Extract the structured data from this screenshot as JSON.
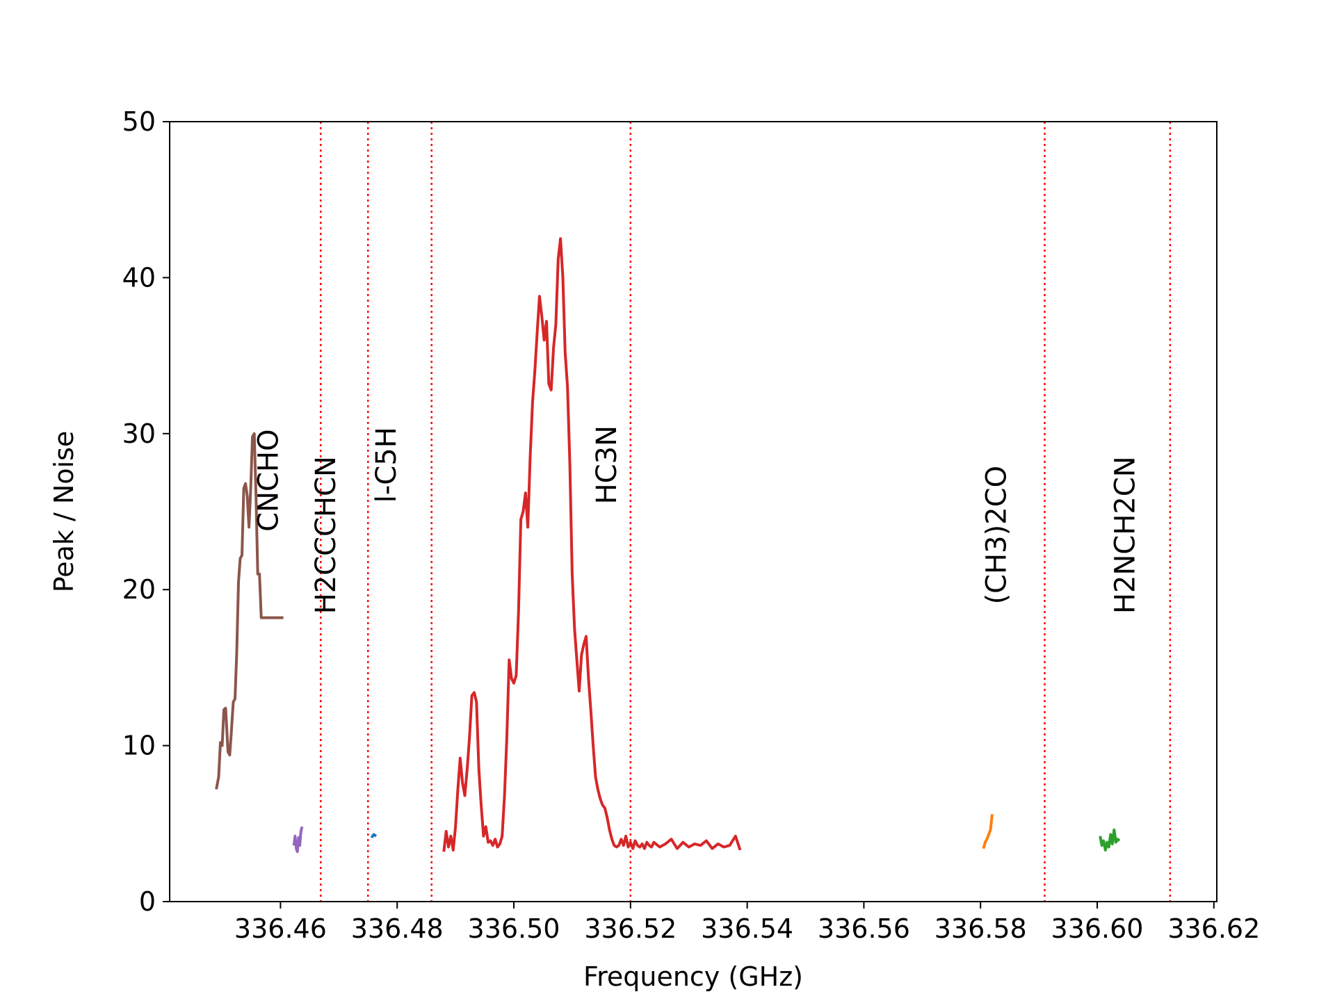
{
  "chart_data": {
    "type": "line",
    "title": "",
    "xlabel": "Frequency (GHz)",
    "ylabel": "Peak / Noise",
    "xlim": [
      336.441,
      336.6205
    ],
    "ylim": [
      0,
      50
    ],
    "xticks": [
      336.46,
      336.48,
      336.5,
      336.52,
      336.54,
      336.56,
      336.58,
      336.6,
      336.62
    ],
    "xtick_labels": [
      "336.46",
      "336.48",
      "336.50",
      "336.52",
      "336.54",
      "336.56",
      "336.58",
      "336.60",
      "336.62"
    ],
    "yticks": [
      0,
      10,
      20,
      30,
      40,
      50
    ],
    "ytick_labels": [
      "0",
      "10",
      "20",
      "30",
      "40",
      "50"
    ],
    "grid": false,
    "reference_lines": {
      "color": "#ff0000",
      "style": "dotted",
      "x": [
        336.4669,
        336.475,
        336.4859,
        336.52,
        336.591,
        336.6125
      ]
    },
    "line_labels": [
      {
        "text": "CNCHO",
        "x": 336.458,
        "y": 27.0
      },
      {
        "text": "H2CCCHCN",
        "x": 336.4678,
        "y": 23.5
      },
      {
        "text": "l-C5H",
        "x": 336.4782,
        "y": 28.0
      },
      {
        "text": "HC3N",
        "x": 336.516,
        "y": 28.0
      },
      {
        "text": "(CH3)2CO",
        "x": 336.5828,
        "y": 23.5
      },
      {
        "text": "H2NCH2CN",
        "x": 336.6048,
        "y": 23.5
      }
    ],
    "series": [
      {
        "color": "#8c564b",
        "x": [
          336.449,
          336.4494,
          336.4497,
          336.45,
          336.4503,
          336.4506,
          336.451,
          336.4513,
          336.4516,
          336.4519,
          336.4522,
          336.4525,
          336.4528,
          336.4531,
          336.4534,
          336.4537,
          336.454,
          336.4543,
          336.4546,
          336.4549,
          336.4552,
          336.4555,
          336.4558,
          336.4561,
          336.4564,
          336.4567,
          336.457,
          336.4573,
          336.4576,
          336.4579,
          336.4582,
          336.4585,
          336.4588,
          336.4591,
          336.4594,
          336.4597,
          336.46,
          336.4603,
          336.4605
        ],
        "y": [
          7.2,
          8.0,
          10.2,
          10.0,
          12.3,
          12.4,
          9.6,
          9.4,
          11.0,
          12.8,
          13.0,
          16.0,
          20.5,
          22.0,
          22.2,
          26.5,
          26.8,
          26.0,
          24.0,
          26.5,
          29.8,
          30.0,
          26.0,
          21.0,
          21.0,
          18.2,
          18.2,
          18.2,
          18.2,
          18.2,
          18.2,
          18.2,
          18.2,
          18.2,
          18.2,
          18.2,
          18.2,
          18.2,
          18.2
        ]
      },
      {
        "color": "#9467bd",
        "x": [
          336.4623,
          336.4625,
          336.4627,
          336.4629,
          336.4631,
          336.4633,
          336.4635,
          336.4637
        ],
        "y": [
          3.6,
          4.2,
          3.4,
          3.2,
          4.1,
          3.6,
          4.5,
          4.8
        ]
      },
      {
        "color": "#1f77b4",
        "x": [
          336.4756,
          336.476,
          336.4764
        ],
        "y": [
          4.1,
          4.3,
          4.2
        ]
      },
      {
        "color": "#d62728",
        "x": [
          336.488,
          336.4884,
          336.4888,
          336.4892,
          336.4896,
          336.49,
          336.4904,
          336.4908,
          336.4912,
          336.4916,
          336.492,
          336.4924,
          336.4928,
          336.4932,
          336.4936,
          336.494,
          336.4944,
          336.4948,
          336.4952,
          336.4956,
          336.496,
          336.4964,
          336.4968,
          336.4972,
          336.4976,
          336.498,
          336.4984,
          336.4988,
          336.4992,
          336.4996,
          336.5,
          336.5004,
          336.5008,
          336.5012,
          336.5016,
          336.502,
          336.5024,
          336.5028,
          336.5032,
          336.5036,
          336.504,
          336.5044,
          336.5048,
          336.5052,
          336.5056,
          336.506,
          336.5064,
          336.5068,
          336.5072,
          336.5076,
          336.508,
          336.5084,
          336.5088,
          336.5092,
          336.5096,
          336.51,
          336.5104,
          336.5108,
          336.5112,
          336.5116,
          336.512,
          336.5124,
          336.5128,
          336.5132,
          336.5136,
          336.514,
          336.5144,
          336.5148,
          336.5152,
          336.5156,
          336.516,
          336.5164,
          336.5168,
          336.5172,
          336.5176,
          336.518,
          336.5184,
          336.5188,
          336.5192,
          336.5196,
          336.52,
          336.5204,
          336.5208,
          336.5212,
          336.5216,
          336.522,
          336.5224,
          336.5228,
          336.5232,
          336.5236,
          336.524,
          336.525,
          336.526,
          336.527,
          336.528,
          336.529,
          336.53,
          336.531,
          336.532,
          336.533,
          336.534,
          336.535,
          336.536,
          336.537,
          336.538,
          336.5388
        ],
        "y": [
          3.2,
          4.5,
          3.5,
          4.2,
          3.3,
          4.8,
          7.2,
          9.2,
          7.6,
          6.8,
          8.5,
          10.5,
          13.2,
          13.4,
          12.8,
          8.5,
          6.2,
          4.2,
          4.8,
          3.8,
          3.9,
          3.6,
          4.0,
          3.5,
          3.7,
          4.2,
          6.8,
          10.5,
          15.5,
          14.3,
          14.0,
          14.5,
          18.5,
          24.5,
          25.0,
          26.2,
          24.0,
          28.5,
          32.0,
          34.0,
          36.5,
          38.8,
          37.5,
          36.0,
          37.2,
          33.2,
          32.8,
          35.5,
          37.0,
          41.2,
          42.5,
          40.0,
          35.2,
          33.0,
          28.0,
          21.0,
          17.5,
          15.5,
          13.5,
          15.8,
          16.5,
          17.0,
          14.3,
          12.2,
          10.0,
          8.0,
          7.2,
          6.6,
          6.2,
          6.0,
          5.4,
          4.6,
          4.0,
          3.6,
          3.5,
          3.6,
          4.0,
          3.6,
          4.2,
          3.5,
          3.8,
          3.4,
          3.9,
          3.6,
          3.5,
          3.7,
          3.4,
          3.8,
          3.6,
          3.5,
          3.8,
          3.5,
          3.7,
          4.0,
          3.4,
          3.8,
          3.5,
          3.7,
          3.6,
          3.9,
          3.4,
          3.7,
          3.5,
          3.6,
          4.2,
          3.3
        ]
      },
      {
        "color": "#ff7f0e",
        "x": [
          336.5805,
          336.5808,
          336.5811,
          336.5814,
          336.5817,
          336.582
        ],
        "y": [
          3.4,
          3.8,
          4.0,
          4.3,
          4.6,
          5.6
        ]
      },
      {
        "color": "#2ca02c",
        "x": [
          336.6005,
          336.6008,
          336.6011,
          336.6014,
          336.6017,
          336.602,
          336.6023,
          336.6026,
          336.6029,
          336.6032,
          336.6035,
          336.6038
        ],
        "y": [
          4.2,
          3.6,
          3.9,
          3.3,
          3.8,
          3.5,
          4.3,
          3.7,
          4.6,
          3.8,
          4.0,
          3.9
        ]
      }
    ]
  }
}
